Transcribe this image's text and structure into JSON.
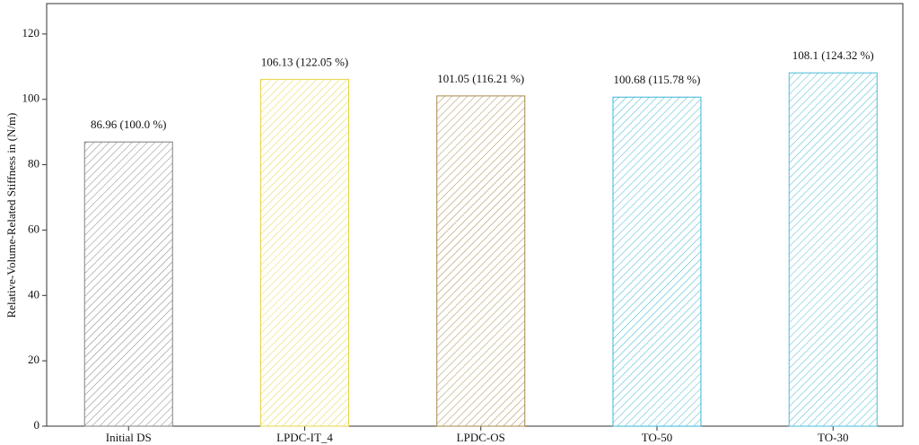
{
  "chart_data": {
    "type": "bar",
    "y_label": "Relative-Volume-Related Stiffness in (N/m)",
    "categories": [
      "Initial DS",
      "LPDC-IT_4",
      "LPDC-OS",
      "TO-50",
      "TO-30"
    ],
    "values": [
      86.96,
      106.13,
      101.05,
      100.68,
      108.1
    ],
    "value_labels": [
      "86.96 (100.0 %)",
      "106.13 (122.05 %)",
      "101.05 (116.21 %)",
      "100.68 (115.78 %)",
      "108.1 (124.32 %)"
    ],
    "colors": [
      "#808080",
      "#e8d44a",
      "#a8894a",
      "#3ab5d8",
      "#4cbcd6"
    ],
    "hatch": true,
    "ylim": [
      0,
      129.3
    ],
    "yticks": [
      0,
      20,
      40,
      60,
      80,
      100,
      120
    ],
    "grid": false
  }
}
